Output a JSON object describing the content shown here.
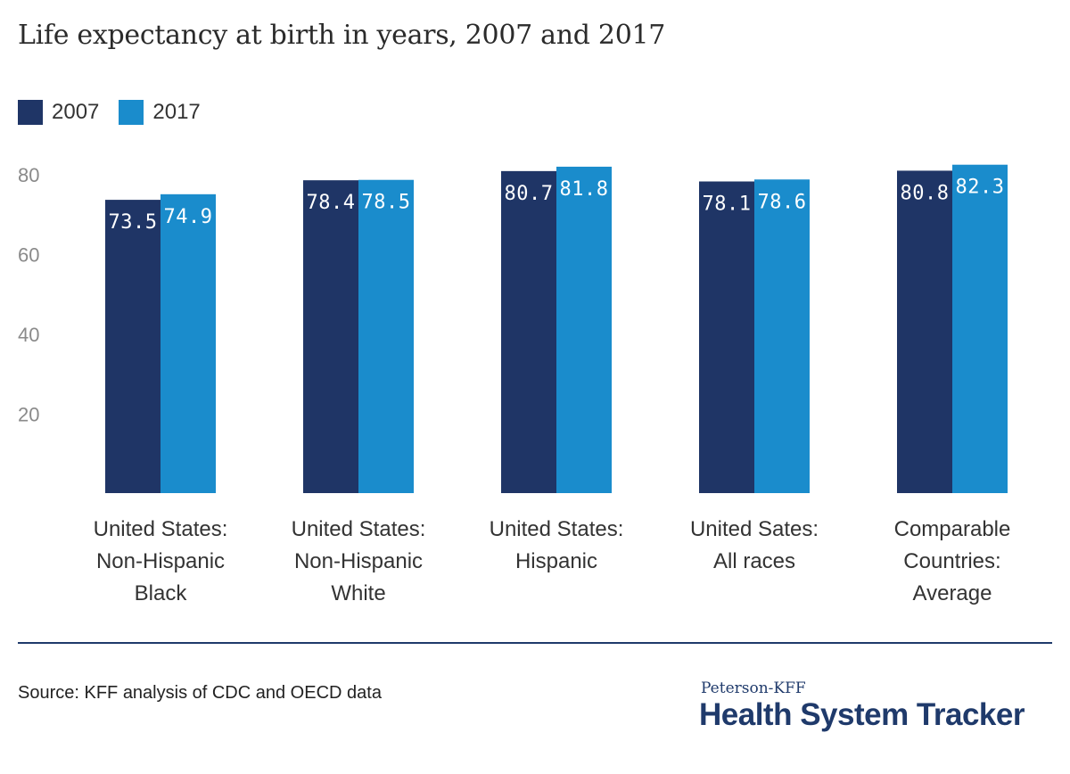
{
  "chart_data": {
    "type": "bar",
    "title": "Life expectancy at birth in years, 2007 and 2017",
    "categories": [
      [
        "United States:",
        "Non-Hispanic",
        "Black"
      ],
      [
        "United States:",
        "Non-Hispanic",
        "White"
      ],
      [
        "United States:",
        "Hispanic"
      ],
      [
        "United Sates:",
        "All races"
      ],
      [
        "Comparable",
        "Countries:",
        "Average"
      ]
    ],
    "series": [
      {
        "name": "2007",
        "color": "#1f3566",
        "values": [
          73.5,
          78.4,
          80.7,
          78.1,
          80.8
        ]
      },
      {
        "name": "2017",
        "color": "#1a8ccc",
        "values": [
          74.9,
          78.5,
          81.8,
          78.6,
          82.3
        ]
      }
    ],
    "yticks": [
      20,
      40,
      60,
      80
    ],
    "ylim": [
      0,
      80
    ],
    "xlabel": "",
    "ylabel": "",
    "grid": false,
    "legend": "top-left"
  },
  "footer": {
    "source": "Source: KFF analysis of CDC and OECD data",
    "brand_small": "Peterson-KFF",
    "brand_big": "Health System Tracker"
  }
}
